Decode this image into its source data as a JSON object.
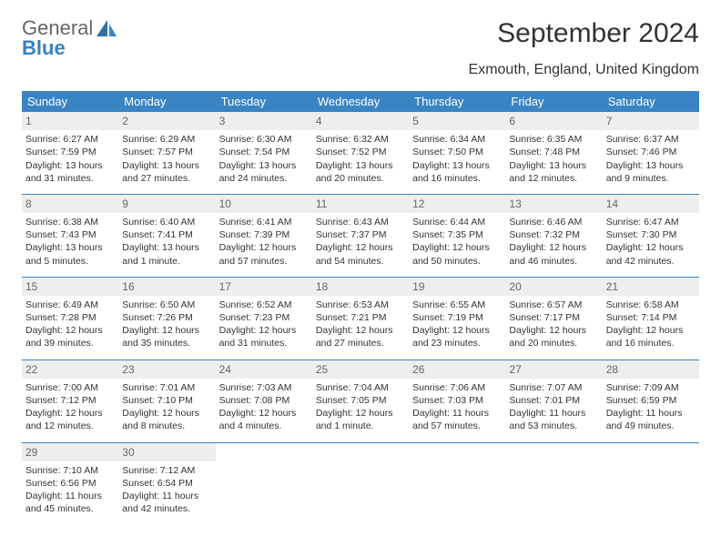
{
  "brand": {
    "line1": "General",
    "line2": "Blue"
  },
  "title": "September 2024",
  "location": "Exmouth, England, United Kingdom",
  "colors": {
    "header_bg": "#3a84c4",
    "header_fg": "#ffffff",
    "daynum_bg": "#eeeeee",
    "daynum_fg": "#666666",
    "border": "#3a84c4",
    "logo_accent": "#3a7fbf"
  },
  "weekdays": [
    "Sunday",
    "Monday",
    "Tuesday",
    "Wednesday",
    "Thursday",
    "Friday",
    "Saturday"
  ],
  "days": [
    {
      "n": "1",
      "sunrise": "Sunrise: 6:27 AM",
      "sunset": "Sunset: 7:59 PM",
      "daylight": "Daylight: 13 hours and 31 minutes."
    },
    {
      "n": "2",
      "sunrise": "Sunrise: 6:29 AM",
      "sunset": "Sunset: 7:57 PM",
      "daylight": "Daylight: 13 hours and 27 minutes."
    },
    {
      "n": "3",
      "sunrise": "Sunrise: 6:30 AM",
      "sunset": "Sunset: 7:54 PM",
      "daylight": "Daylight: 13 hours and 24 minutes."
    },
    {
      "n": "4",
      "sunrise": "Sunrise: 6:32 AM",
      "sunset": "Sunset: 7:52 PM",
      "daylight": "Daylight: 13 hours and 20 minutes."
    },
    {
      "n": "5",
      "sunrise": "Sunrise: 6:34 AM",
      "sunset": "Sunset: 7:50 PM",
      "daylight": "Daylight: 13 hours and 16 minutes."
    },
    {
      "n": "6",
      "sunrise": "Sunrise: 6:35 AM",
      "sunset": "Sunset: 7:48 PM",
      "daylight": "Daylight: 13 hours and 12 minutes."
    },
    {
      "n": "7",
      "sunrise": "Sunrise: 6:37 AM",
      "sunset": "Sunset: 7:46 PM",
      "daylight": "Daylight: 13 hours and 9 minutes."
    },
    {
      "n": "8",
      "sunrise": "Sunrise: 6:38 AM",
      "sunset": "Sunset: 7:43 PM",
      "daylight": "Daylight: 13 hours and 5 minutes."
    },
    {
      "n": "9",
      "sunrise": "Sunrise: 6:40 AM",
      "sunset": "Sunset: 7:41 PM",
      "daylight": "Daylight: 13 hours and 1 minute."
    },
    {
      "n": "10",
      "sunrise": "Sunrise: 6:41 AM",
      "sunset": "Sunset: 7:39 PM",
      "daylight": "Daylight: 12 hours and 57 minutes."
    },
    {
      "n": "11",
      "sunrise": "Sunrise: 6:43 AM",
      "sunset": "Sunset: 7:37 PM",
      "daylight": "Daylight: 12 hours and 54 minutes."
    },
    {
      "n": "12",
      "sunrise": "Sunrise: 6:44 AM",
      "sunset": "Sunset: 7:35 PM",
      "daylight": "Daylight: 12 hours and 50 minutes."
    },
    {
      "n": "13",
      "sunrise": "Sunrise: 6:46 AM",
      "sunset": "Sunset: 7:32 PM",
      "daylight": "Daylight: 12 hours and 46 minutes."
    },
    {
      "n": "14",
      "sunrise": "Sunrise: 6:47 AM",
      "sunset": "Sunset: 7:30 PM",
      "daylight": "Daylight: 12 hours and 42 minutes."
    },
    {
      "n": "15",
      "sunrise": "Sunrise: 6:49 AM",
      "sunset": "Sunset: 7:28 PM",
      "daylight": "Daylight: 12 hours and 39 minutes."
    },
    {
      "n": "16",
      "sunrise": "Sunrise: 6:50 AM",
      "sunset": "Sunset: 7:26 PM",
      "daylight": "Daylight: 12 hours and 35 minutes."
    },
    {
      "n": "17",
      "sunrise": "Sunrise: 6:52 AM",
      "sunset": "Sunset: 7:23 PM",
      "daylight": "Daylight: 12 hours and 31 minutes."
    },
    {
      "n": "18",
      "sunrise": "Sunrise: 6:53 AM",
      "sunset": "Sunset: 7:21 PM",
      "daylight": "Daylight: 12 hours and 27 minutes."
    },
    {
      "n": "19",
      "sunrise": "Sunrise: 6:55 AM",
      "sunset": "Sunset: 7:19 PM",
      "daylight": "Daylight: 12 hours and 23 minutes."
    },
    {
      "n": "20",
      "sunrise": "Sunrise: 6:57 AM",
      "sunset": "Sunset: 7:17 PM",
      "daylight": "Daylight: 12 hours and 20 minutes."
    },
    {
      "n": "21",
      "sunrise": "Sunrise: 6:58 AM",
      "sunset": "Sunset: 7:14 PM",
      "daylight": "Daylight: 12 hours and 16 minutes."
    },
    {
      "n": "22",
      "sunrise": "Sunrise: 7:00 AM",
      "sunset": "Sunset: 7:12 PM",
      "daylight": "Daylight: 12 hours and 12 minutes."
    },
    {
      "n": "23",
      "sunrise": "Sunrise: 7:01 AM",
      "sunset": "Sunset: 7:10 PM",
      "daylight": "Daylight: 12 hours and 8 minutes."
    },
    {
      "n": "24",
      "sunrise": "Sunrise: 7:03 AM",
      "sunset": "Sunset: 7:08 PM",
      "daylight": "Daylight: 12 hours and 4 minutes."
    },
    {
      "n": "25",
      "sunrise": "Sunrise: 7:04 AM",
      "sunset": "Sunset: 7:05 PM",
      "daylight": "Daylight: 12 hours and 1 minute."
    },
    {
      "n": "26",
      "sunrise": "Sunrise: 7:06 AM",
      "sunset": "Sunset: 7:03 PM",
      "daylight": "Daylight: 11 hours and 57 minutes."
    },
    {
      "n": "27",
      "sunrise": "Sunrise: 7:07 AM",
      "sunset": "Sunset: 7:01 PM",
      "daylight": "Daylight: 11 hours and 53 minutes."
    },
    {
      "n": "28",
      "sunrise": "Sunrise: 7:09 AM",
      "sunset": "Sunset: 6:59 PM",
      "daylight": "Daylight: 11 hours and 49 minutes."
    },
    {
      "n": "29",
      "sunrise": "Sunrise: 7:10 AM",
      "sunset": "Sunset: 6:56 PM",
      "daylight": "Daylight: 11 hours and 45 minutes."
    },
    {
      "n": "30",
      "sunrise": "Sunrise: 7:12 AM",
      "sunset": "Sunset: 6:54 PM",
      "daylight": "Daylight: 11 hours and 42 minutes."
    }
  ]
}
